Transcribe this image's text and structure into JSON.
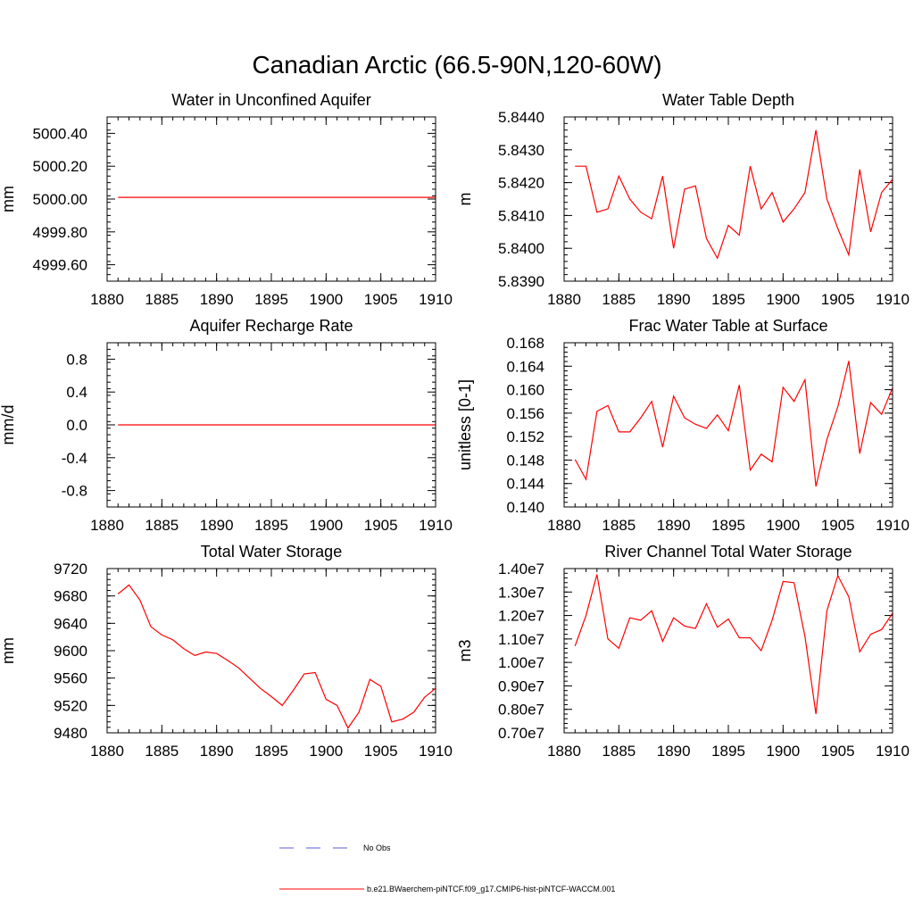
{
  "figure": {
    "title": "Canadian Arctic (66.5-90N,120-60W)"
  },
  "legend": {
    "items": [
      {
        "label": "No Obs",
        "color": "#5b5bd6",
        "dash": true
      },
      {
        "label": "b.e21.BWaerchem-piNTCF.f09_g17.CMIP6-hist-piNTCF-WACCM.001",
        "color": "#ff0000",
        "dash": false
      }
    ]
  },
  "chart_data": [
    {
      "type": "line",
      "title": "Water in Unconfined Aquifer",
      "ylabel": "mm",
      "xlim": [
        1880,
        1910
      ],
      "ylim": [
        4999.5,
        5000.5
      ],
      "xticks": [
        1880,
        1885,
        1890,
        1895,
        1900,
        1905,
        1910
      ],
      "yticks": [
        4999.6,
        4999.8,
        5000.0,
        5000.2,
        5000.4
      ],
      "ytick_labels": [
        "4999.60",
        "4999.80",
        "5000.00",
        "5000.20",
        "5000.40"
      ],
      "series": [
        {
          "color": "#ff0000",
          "x": [
            1881,
            1910
          ],
          "values": [
            5000.01,
            5000.01
          ]
        }
      ]
    },
    {
      "type": "line",
      "title": "Water Table Depth",
      "ylabel": "m",
      "xlim": [
        1880,
        1910
      ],
      "ylim": [
        5.839,
        5.844
      ],
      "xticks": [
        1880,
        1885,
        1890,
        1895,
        1900,
        1905,
        1910
      ],
      "yticks": [
        5.839,
        5.84,
        5.841,
        5.842,
        5.843,
        5.844
      ],
      "ytick_labels": [
        "5.8390",
        "5.8400",
        "5.8410",
        "5.8420",
        "5.8430",
        "5.8440"
      ],
      "series": [
        {
          "color": "#ff0000",
          "x": [
            1881,
            1882,
            1883,
            1884,
            1885,
            1886,
            1887,
            1888,
            1889,
            1890,
            1891,
            1892,
            1893,
            1894,
            1895,
            1896,
            1897,
            1898,
            1899,
            1900,
            1901,
            1902,
            1903,
            1904,
            1905,
            1906,
            1907,
            1908,
            1909,
            1910
          ],
          "values": [
            5.8425,
            5.8425,
            5.8411,
            5.8412,
            5.8422,
            5.8415,
            5.8411,
            5.8409,
            5.8422,
            5.84,
            5.8418,
            5.8419,
            5.8403,
            5.8397,
            5.8407,
            5.8404,
            5.8425,
            5.8412,
            5.8417,
            5.8408,
            5.8412,
            5.8417,
            5.8436,
            5.8415,
            5.8406,
            5.8398,
            5.8424,
            5.8405,
            5.8417,
            5.8421
          ]
        }
      ]
    },
    {
      "type": "line",
      "title": "Aquifer Recharge Rate",
      "ylabel": "mm/d",
      "xlim": [
        1880,
        1910
      ],
      "ylim": [
        -1.0,
        1.0
      ],
      "xticks": [
        1880,
        1885,
        1890,
        1895,
        1900,
        1905,
        1910
      ],
      "yticks": [
        -0.8,
        -0.4,
        0.0,
        0.4,
        0.8
      ],
      "ytick_labels": [
        "-0.8",
        "-0.4",
        "0.0",
        "0.4",
        "0.8"
      ],
      "series": [
        {
          "color": "#ff0000",
          "x": [
            1881,
            1910
          ],
          "values": [
            0.0,
            0.0
          ]
        }
      ]
    },
    {
      "type": "line",
      "title": "Frac Water Table at Surface",
      "ylabel": "unitless [0-1]",
      "xlim": [
        1880,
        1910
      ],
      "ylim": [
        0.14,
        0.168
      ],
      "xticks": [
        1880,
        1885,
        1890,
        1895,
        1900,
        1905,
        1910
      ],
      "yticks": [
        0.14,
        0.144,
        0.148,
        0.152,
        0.156,
        0.16,
        0.164,
        0.168
      ],
      "ytick_labels": [
        "0.140",
        "0.144",
        "0.148",
        "0.152",
        "0.156",
        "0.160",
        "0.164",
        "0.168"
      ],
      "series": [
        {
          "color": "#ff0000",
          "x": [
            1881,
            1882,
            1883,
            1884,
            1885,
            1886,
            1887,
            1888,
            1889,
            1890,
            1891,
            1892,
            1893,
            1894,
            1895,
            1896,
            1897,
            1898,
            1899,
            1900,
            1901,
            1902,
            1903,
            1904,
            1905,
            1906,
            1907,
            1908,
            1909,
            1910
          ],
          "values": [
            0.1481,
            0.1447,
            0.1563,
            0.1573,
            0.1528,
            0.1528,
            0.1552,
            0.158,
            0.1502,
            0.1589,
            0.1552,
            0.1541,
            0.1534,
            0.1557,
            0.153,
            0.1608,
            0.1463,
            0.149,
            0.1477,
            0.1604,
            0.158,
            0.1617,
            0.1435,
            0.1515,
            0.1571,
            0.1649,
            0.1491,
            0.1578,
            0.1558,
            0.1603
          ]
        }
      ]
    },
    {
      "type": "line",
      "title": "Total Water Storage",
      "ylabel": "mm",
      "xlim": [
        1880,
        1910
      ],
      "ylim": [
        9480,
        9720
      ],
      "xticks": [
        1880,
        1885,
        1890,
        1895,
        1900,
        1905,
        1910
      ],
      "yticks": [
        9480,
        9520,
        9560,
        9600,
        9640,
        9680,
        9720
      ],
      "ytick_labels": [
        "9480",
        "9520",
        "9560",
        "9600",
        "9640",
        "9680",
        "9720"
      ],
      "series": [
        {
          "color": "#ff0000",
          "x": [
            1881,
            1882,
            1883,
            1884,
            1885,
            1886,
            1887,
            1888,
            1889,
            1890,
            1891,
            1892,
            1893,
            1894,
            1895,
            1896,
            1897,
            1898,
            1899,
            1900,
            1901,
            1902,
            1903,
            1904,
            1905,
            1906,
            1907,
            1908,
            1909,
            1910
          ],
          "values": [
            9683,
            9696,
            9674,
            9635,
            9623,
            9616,
            9603,
            9593,
            9598,
            9596,
            9586,
            9575,
            9560,
            9545,
            9533,
            9520,
            9542,
            9566,
            9568,
            9529,
            9520,
            9487,
            9510,
            9558,
            9548,
            9496,
            9500,
            9510,
            9532,
            9545
          ]
        }
      ]
    },
    {
      "type": "line",
      "title": "River Channel Total Water Storage",
      "ylabel": "m3",
      "xlim": [
        1880,
        1910
      ],
      "ylim": [
        7000000,
        14000000
      ],
      "xticks": [
        1880,
        1885,
        1890,
        1895,
        1900,
        1905,
        1910
      ],
      "yticks": [
        7000000,
        8000000,
        9000000,
        10000000,
        11000000,
        12000000,
        13000000,
        14000000
      ],
      "ytick_labels": [
        "0.70e7",
        "0.80e7",
        "0.90e7",
        "1.00e7",
        "1.10e7",
        "1.20e7",
        "1.30e7",
        "1.40e7"
      ],
      "series": [
        {
          "color": "#ff0000",
          "x": [
            1881,
            1882,
            1883,
            1884,
            1885,
            1886,
            1887,
            1888,
            1889,
            1890,
            1891,
            1892,
            1893,
            1894,
            1895,
            1896,
            1897,
            1898,
            1899,
            1900,
            1901,
            1902,
            1903,
            1904,
            1905,
            1906,
            1907,
            1908,
            1909,
            1910
          ],
          "values": [
            10700000,
            12000000,
            13750000,
            11000000,
            10600000,
            11900000,
            11800000,
            12200000,
            10900000,
            11900000,
            11550000,
            11450000,
            12500000,
            11500000,
            11850000,
            11050000,
            11050000,
            10500000,
            11800000,
            13450000,
            13400000,
            11100000,
            7800000,
            12200000,
            13700000,
            12800000,
            10450000,
            11200000,
            11400000,
            12100000
          ]
        }
      ]
    }
  ]
}
